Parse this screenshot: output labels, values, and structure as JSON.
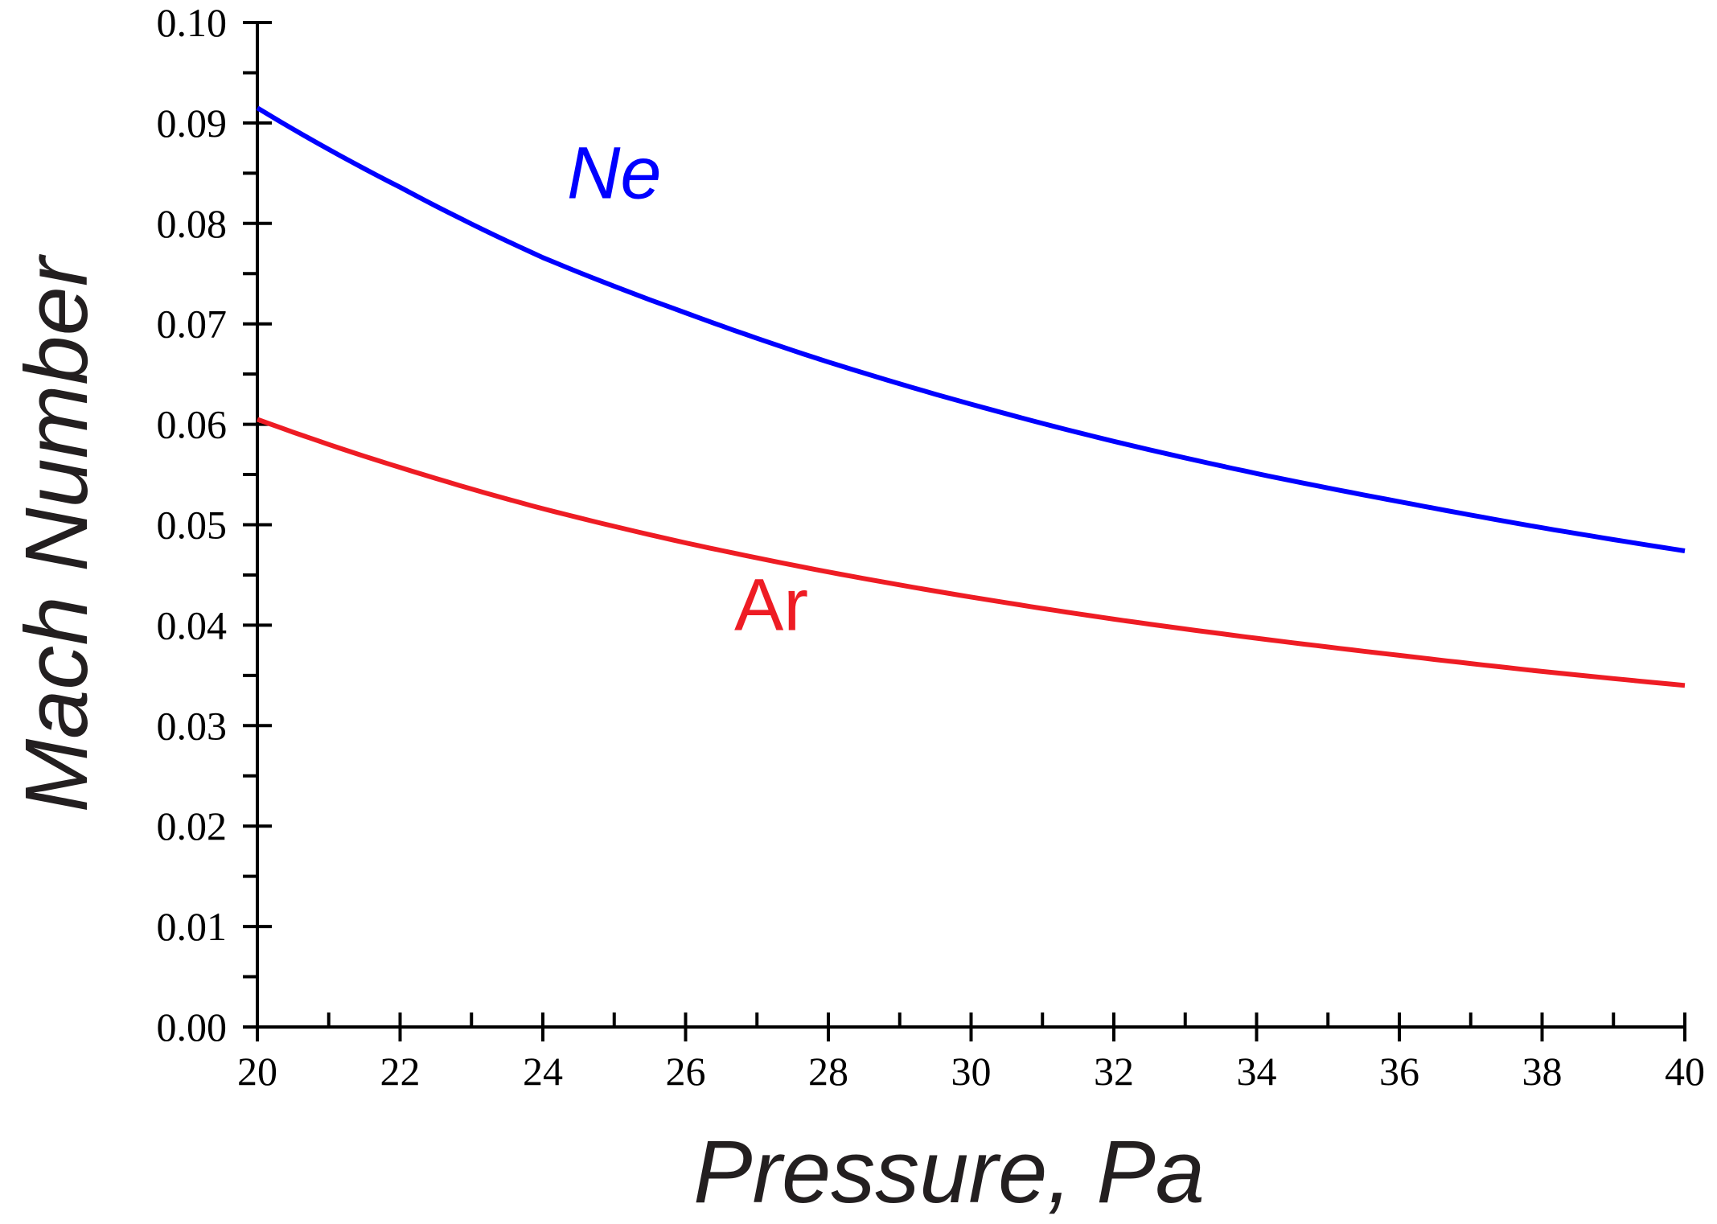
{
  "chart_data": {
    "type": "line",
    "title": "",
    "xlabel": "Pressure, Pa",
    "ylabel": "Mach Number",
    "xlim": [
      20,
      40
    ],
    "ylim": [
      0.0,
      0.1
    ],
    "x_ticks": [
      "20",
      "22",
      "24",
      "26",
      "28",
      "30",
      "32",
      "34",
      "36",
      "38",
      "40"
    ],
    "y_ticks": [
      "0.00",
      "0.01",
      "0.02",
      "0.03",
      "0.04",
      "0.05",
      "0.06",
      "0.07",
      "0.08",
      "0.09",
      "0.10"
    ],
    "grid": false,
    "series": [
      {
        "name": "Ne",
        "color": "#0000ff",
        "x": [
          20,
          22,
          24,
          26,
          28,
          30,
          32,
          34,
          36,
          38,
          40
        ],
        "y": [
          0.0915,
          0.0836,
          0.0766,
          0.0711,
          0.0662,
          0.062,
          0.0583,
          0.0551,
          0.0523,
          0.0497,
          0.0474
        ]
      },
      {
        "name": "Ar",
        "color": "#ee1c24",
        "x": [
          20,
          22,
          24,
          26,
          28,
          30,
          32,
          34,
          36,
          38,
          40
        ],
        "y": [
          0.0605,
          0.0557,
          0.0516,
          0.0482,
          0.0453,
          0.0428,
          0.0406,
          0.0387,
          0.037,
          0.0354,
          0.034
        ]
      }
    ],
    "annotations": [
      {
        "text": "Ne",
        "series": "Ne",
        "x": 25.0,
        "y": 0.0825
      },
      {
        "text": "Ar",
        "series": "Ar",
        "x": 27.2,
        "y": 0.0395
      }
    ]
  }
}
